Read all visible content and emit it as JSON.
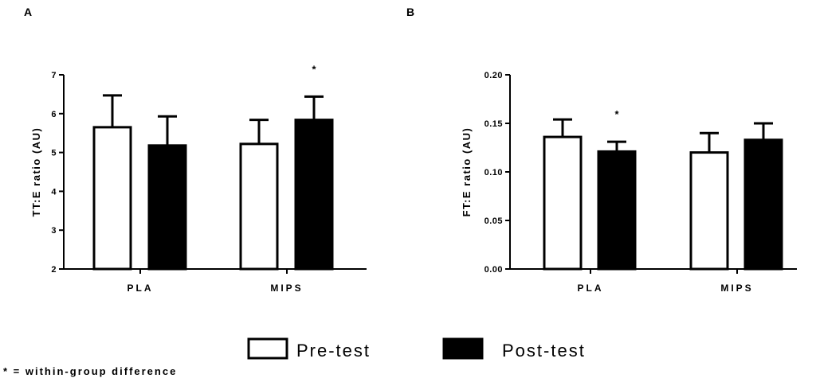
{
  "chart_data": [
    {
      "panel": "A",
      "type": "bar",
      "categories": [
        "PLA",
        "MIPS"
      ],
      "ylabel": "TT:E ratio (AU)",
      "ylim": [
        2,
        7
      ],
      "yticks": [
        "2",
        "3",
        "4",
        "5",
        "6",
        "7"
      ],
      "series": [
        {
          "name": "Pre-test",
          "values": [
            5.65,
            5.22
          ],
          "errors": [
            0.82,
            0.62
          ]
        },
        {
          "name": "Post-test",
          "values": [
            5.18,
            5.84
          ],
          "errors": [
            0.75,
            0.6
          ]
        }
      ],
      "annotations": [
        {
          "category": "MIPS",
          "series": "Post-test",
          "text": "*"
        }
      ]
    },
    {
      "panel": "B",
      "type": "bar",
      "categories": [
        "PLA",
        "MIPS"
      ],
      "ylabel": "FT:E ratio (AU)",
      "ylim": [
        0,
        0.2
      ],
      "yticks": [
        "0.00",
        "0.05",
        "0.10",
        "0.15",
        "0.20"
      ],
      "series": [
        {
          "name": "Pre-test",
          "values": [
            0.136,
            0.12
          ],
          "errors": [
            0.018,
            0.02
          ]
        },
        {
          "name": "Post-test",
          "values": [
            0.121,
            0.133
          ],
          "errors": [
            0.01,
            0.017
          ]
        }
      ],
      "annotations": [
        {
          "category": "PLA",
          "series": "Post-test",
          "text": "*"
        }
      ]
    }
  ],
  "legend": [
    {
      "label": "Pre-test",
      "fill": "#ffffff"
    },
    {
      "label": "Post-test",
      "fill": "#000000"
    }
  ],
  "footnote": "* = within-group difference"
}
